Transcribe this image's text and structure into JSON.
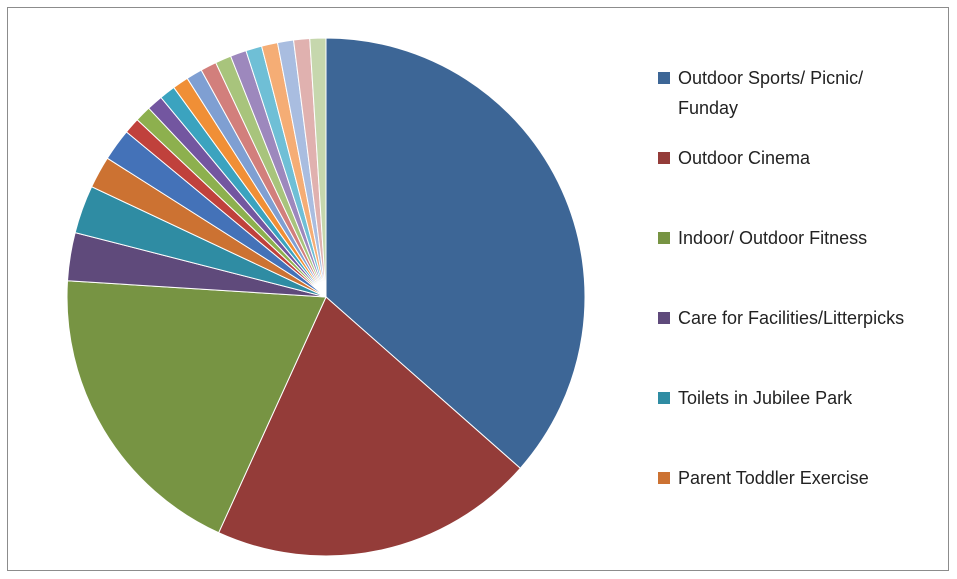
{
  "chart_data": {
    "type": "pie",
    "categories": [
      "Outdoor Sports/ Picnic/ Funday",
      "Outdoor Cinema",
      "Indoor/ Outdoor Fitness",
      "Care for Facilities/Litterpicks",
      "Toilets in Jubilee Park",
      "Parent Toddler Exercise",
      null,
      null,
      null,
      null,
      null,
      null,
      null,
      null,
      null,
      null,
      null,
      null,
      null,
      null,
      null
    ],
    "values": [
      36.5,
      20.3,
      19.2,
      3,
      3,
      2,
      2,
      1,
      1,
      1,
      1,
      1,
      1,
      1,
      1,
      1,
      1,
      1,
      1,
      1,
      1
    ],
    "colors": [
      "#3d6696",
      "#943c39",
      "#779443",
      "#5f4a7b",
      "#2f8ca3",
      "#cc7232",
      "#4472b8",
      "#c0413c",
      "#8db04e",
      "#7356a0",
      "#3ba3bf",
      "#f08f36",
      "#7f9fd2",
      "#d27f7c",
      "#a8c47c",
      "#9d88bd",
      "#6fbfd6",
      "#f5ad75",
      "#a9bde0",
      "#e0b1af",
      "#c6d7ad"
    ],
    "legend": "right"
  }
}
